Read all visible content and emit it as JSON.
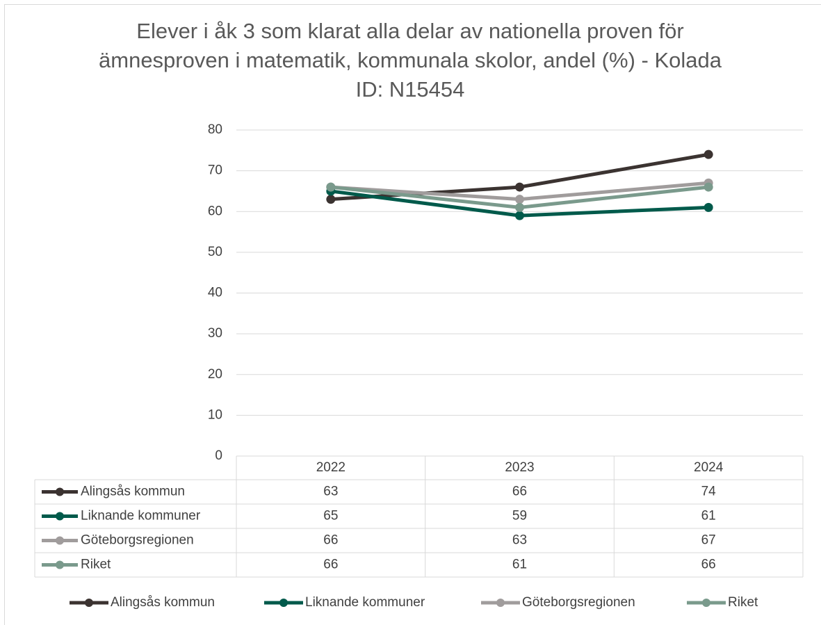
{
  "chart_data": {
    "type": "line",
    "title": "Elever i åk 3 som klarat alla delar av nationella proven för ämnesproven i matematik, kommunala skolor, andel (%) - Kolada ID: N15454",
    "categories": [
      "2022",
      "2023",
      "2024"
    ],
    "series": [
      {
        "name": "Alingsås kommun",
        "color": "#3b3331",
        "values": [
          63,
          66,
          74
        ]
      },
      {
        "name": "Liknande kommuner",
        "color": "#005a4b",
        "values": [
          65,
          59,
          61
        ]
      },
      {
        "name": "Göteborgsregionen",
        "color": "#a09c9c",
        "values": [
          66,
          63,
          67
        ]
      },
      {
        "name": "Riket",
        "color": "#7a9a8c",
        "values": [
          66,
          61,
          66
        ]
      }
    ],
    "ylim": [
      0,
      80
    ],
    "yticks": [
      0,
      10,
      20,
      30,
      40,
      50,
      60,
      70,
      80
    ],
    "grid": true,
    "legend": "bottom"
  }
}
